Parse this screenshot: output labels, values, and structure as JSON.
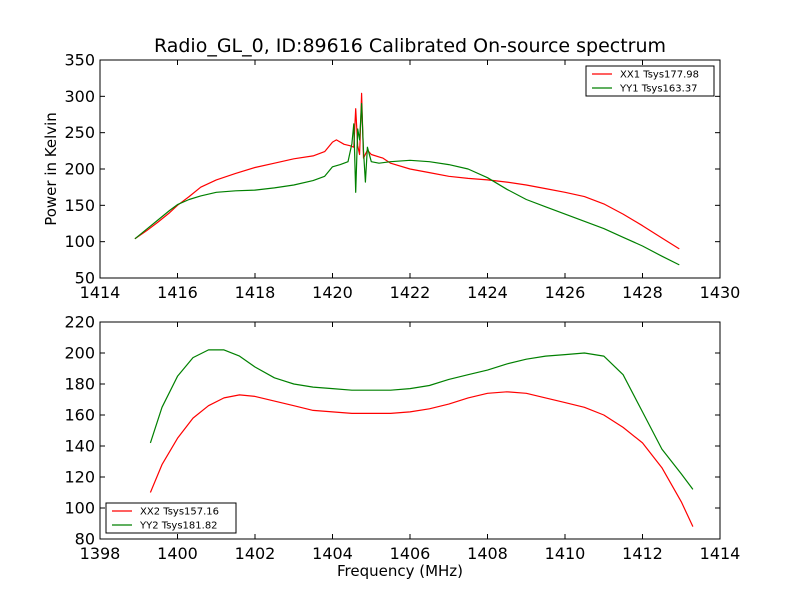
{
  "title": "Radio_GL_0, ID:89616 Calibrated On-source spectrum",
  "chart_data": [
    {
      "type": "line",
      "title": "Radio_GL_0, ID:89616 Calibrated On-source spectrum",
      "xlabel": "",
      "ylabel": "Power in Kelvin",
      "xlim": [
        1414,
        1430
      ],
      "ylim": [
        50,
        350
      ],
      "xticks": [
        1414,
        1416,
        1418,
        1420,
        1422,
        1424,
        1426,
        1428,
        1430
      ],
      "yticks": [
        50,
        100,
        150,
        200,
        250,
        300,
        350
      ],
      "grid": false,
      "legend_position": "top-right",
      "series": [
        {
          "name": "XX1 Tsys177.98",
          "color": "#ff0000",
          "x": [
            1414.9,
            1415.2,
            1415.5,
            1415.8,
            1416.0,
            1416.3,
            1416.6,
            1417.0,
            1417.5,
            1418.0,
            1418.5,
            1419.0,
            1419.5,
            1419.8,
            1420.0,
            1420.1,
            1420.3,
            1420.45,
            1420.55,
            1420.6,
            1420.65,
            1420.7,
            1420.75,
            1420.8,
            1420.9,
            1421.0,
            1421.3,
            1421.5,
            1422.0,
            1422.5,
            1423.0,
            1423.5,
            1424.0,
            1424.5,
            1425.0,
            1425.5,
            1426.0,
            1426.5,
            1427.0,
            1427.5,
            1428.0,
            1428.5,
            1428.95
          ],
          "y": [
            104,
            115,
            127,
            140,
            150,
            162,
            175,
            185,
            194,
            202,
            208,
            214,
            218,
            224,
            237,
            240,
            234,
            232,
            230,
            283,
            232,
            220,
            304,
            215,
            226,
            220,
            215,
            208,
            200,
            195,
            190,
            187,
            185,
            182,
            178,
            173,
            168,
            162,
            152,
            138,
            122,
            105,
            90
          ]
        },
        {
          "name": "YY1 Tsys163.37",
          "color": "#008000",
          "x": [
            1414.9,
            1415.2,
            1415.5,
            1415.8,
            1416.0,
            1416.3,
            1416.6,
            1417.0,
            1417.5,
            1418.0,
            1418.5,
            1419.0,
            1419.5,
            1419.8,
            1420.0,
            1420.2,
            1420.4,
            1420.5,
            1420.55,
            1420.6,
            1420.65,
            1420.7,
            1420.75,
            1420.8,
            1420.85,
            1420.9,
            1421.0,
            1421.2,
            1421.5,
            1422.0,
            1422.5,
            1423.0,
            1423.5,
            1424.0,
            1424.5,
            1425.0,
            1425.5,
            1426.0,
            1426.5,
            1427.0,
            1427.5,
            1428.0,
            1428.5,
            1428.95
          ],
          "y": [
            104,
            117,
            130,
            143,
            151,
            158,
            163,
            168,
            170,
            171,
            174,
            178,
            184,
            190,
            203,
            206,
            210,
            235,
            262,
            168,
            255,
            240,
            290,
            225,
            182,
            230,
            210,
            208,
            210,
            212,
            210,
            206,
            200,
            188,
            172,
            158,
            148,
            138,
            128,
            118,
            106,
            94,
            80,
            68
          ]
        }
      ]
    },
    {
      "type": "line",
      "title": "",
      "xlabel": "Frequency (MHz)",
      "ylabel": "",
      "xlim": [
        1398,
        1414
      ],
      "ylim": [
        80,
        220
      ],
      "xticks": [
        1398,
        1400,
        1402,
        1404,
        1406,
        1408,
        1410,
        1412,
        1414
      ],
      "yticks": [
        80,
        100,
        120,
        140,
        160,
        180,
        200,
        220
      ],
      "grid": false,
      "legend_position": "bottom-left",
      "series": [
        {
          "name": "XX2 Tsys157.16",
          "color": "#ff0000",
          "x": [
            1399.3,
            1399.6,
            1400.0,
            1400.4,
            1400.8,
            1401.2,
            1401.6,
            1402.0,
            1402.5,
            1403.0,
            1403.5,
            1404.0,
            1404.5,
            1405.0,
            1405.5,
            1406.0,
            1406.5,
            1407.0,
            1407.5,
            1408.0,
            1408.5,
            1409.0,
            1409.5,
            1410.0,
            1410.5,
            1411.0,
            1411.5,
            1412.0,
            1412.5,
            1413.0,
            1413.3
          ],
          "y": [
            110,
            128,
            145,
            158,
            166,
            171,
            173,
            172,
            169,
            166,
            163,
            162,
            161,
            161,
            161,
            162,
            164,
            167,
            171,
            174,
            175,
            174,
            171,
            168,
            165,
            160,
            152,
            142,
            126,
            104,
            88
          ]
        },
        {
          "name": "YY2 Tsys181.82",
          "color": "#008000",
          "x": [
            1399.3,
            1399.6,
            1400.0,
            1400.4,
            1400.8,
            1401.2,
            1401.6,
            1402.0,
            1402.5,
            1403.0,
            1403.5,
            1404.0,
            1404.5,
            1405.0,
            1405.5,
            1406.0,
            1406.5,
            1407.0,
            1407.5,
            1408.0,
            1408.5,
            1409.0,
            1409.5,
            1410.0,
            1410.5,
            1411.0,
            1411.5,
            1412.0,
            1412.5,
            1413.0,
            1413.3
          ],
          "y": [
            142,
            165,
            185,
            197,
            202,
            202,
            198,
            191,
            184,
            180,
            178,
            177,
            176,
            176,
            176,
            177,
            179,
            183,
            186,
            189,
            193,
            196,
            198,
            199,
            200,
            198,
            186,
            162,
            138,
            122,
            112
          ]
        }
      ]
    }
  ]
}
